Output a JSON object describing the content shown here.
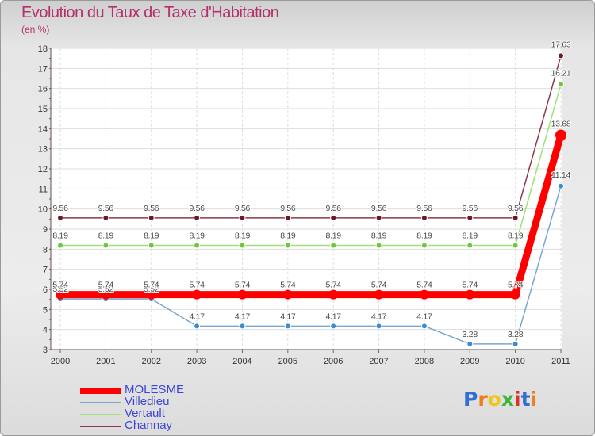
{
  "title": "Evolution du Taux de Taxe d'Habitation",
  "unit_label": "(en %)",
  "logo": {
    "text": "Proxiti",
    "letter_colors": [
      "#2f6fd6",
      "#f07c1e",
      "#f0c419",
      "#3db43d",
      "#d9362a",
      "#2f6fd6",
      "#f07c1e"
    ]
  },
  "chart_data": {
    "type": "line",
    "title": "Evolution du Taux de Taxe d'Habitation",
    "ylabel": "(en %)",
    "xlabel": "",
    "x": [
      "2000",
      "2001",
      "2002",
      "2003",
      "2004",
      "2005",
      "2006",
      "2007",
      "2008",
      "2009",
      "2010",
      "2011"
    ],
    "ylim": [
      3,
      18
    ],
    "yticks": [
      3,
      4,
      5,
      6,
      7,
      8,
      9,
      10,
      11,
      12,
      13,
      14,
      15,
      16,
      17,
      18
    ],
    "grid": true,
    "legend_position": "bottom-left",
    "series": [
      {
        "name": "Channay",
        "color": "#8a3a48",
        "marker_color": "#6b1a22",
        "values": [
          9.56,
          9.56,
          9.56,
          9.56,
          9.56,
          9.56,
          9.56,
          9.56,
          9.56,
          9.56,
          9.56,
          17.63
        ],
        "labels": [
          "9.56",
          "9.56",
          "9.56",
          "9.56",
          "9.56",
          "9.56",
          "9.56",
          "9.56",
          "9.56",
          "9.56",
          "9.56",
          "17.63"
        ]
      },
      {
        "name": "Vertault",
        "color": "#9fe07a",
        "marker_color": "#6cc93a",
        "values": [
          8.19,
          8.19,
          8.19,
          8.19,
          8.19,
          8.19,
          8.19,
          8.19,
          8.19,
          8.19,
          8.19,
          16.21
        ],
        "labels": [
          "8.19",
          "8.19",
          "8.19",
          "8.19",
          "8.19",
          "8.19",
          "8.19",
          "8.19",
          "8.19",
          "8.19",
          "8.19",
          "16.21"
        ]
      },
      {
        "name": "Villedieu",
        "color": "#7aa6d0",
        "marker_color": "#3c8ad0",
        "values": [
          5.52,
          5.52,
          5.52,
          4.17,
          4.17,
          4.17,
          4.17,
          4.17,
          4.17,
          3.28,
          3.28,
          11.14
        ],
        "labels": [
          "5.52",
          "5.52",
          "5.52",
          "4.17",
          "4.17",
          "4.17",
          "4.17",
          "4.17",
          "4.17",
          "3.28",
          "3.28",
          "11.14"
        ]
      },
      {
        "name": "MOLESME",
        "color": "#ff0000",
        "marker_color": "#ff0000",
        "values": [
          5.74,
          5.74,
          5.74,
          5.74,
          5.74,
          5.74,
          5.74,
          5.74,
          5.74,
          5.74,
          5.74,
          13.68
        ],
        "labels": [
          "5.74",
          "5.74",
          "5.74",
          "5.74",
          "5.74",
          "5.74",
          "5.74",
          "5.74",
          "5.74",
          "5.74",
          "5.74",
          "13.68"
        ]
      }
    ],
    "legend_order": [
      "MOLESME",
      "Villedieu",
      "Vertault",
      "Channay"
    ]
  }
}
